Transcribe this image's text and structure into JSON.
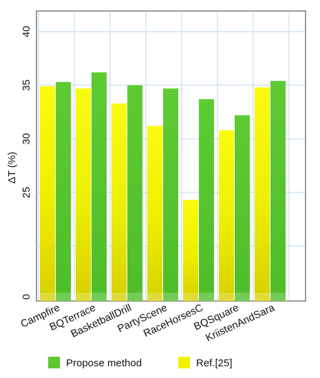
{
  "chart_data": {
    "type": "bar",
    "categories": [
      "Campfire",
      "BQTerrace",
      "BasketballDrill",
      "PartyScene",
      "RaceHorsesC",
      "BQSquare",
      "KriistenAndSara"
    ],
    "series": [
      {
        "name": "Ref.[25]",
        "values": [
          34.9,
          34.7,
          33.3,
          31.2,
          24.3,
          30.8,
          34.8
        ],
        "color": "#f2f200"
      },
      {
        "name": "Propose method",
        "values": [
          35.3,
          36.2,
          35.0,
          34.7,
          33.7,
          32.2,
          35.4
        ],
        "color": "#5cc832"
      }
    ],
    "yticks": [
      "0",
      "25",
      "30",
      "35",
      "40"
    ],
    "ylabel": "ΔT  (%)",
    "grid": true,
    "legend_position": "bottom"
  }
}
